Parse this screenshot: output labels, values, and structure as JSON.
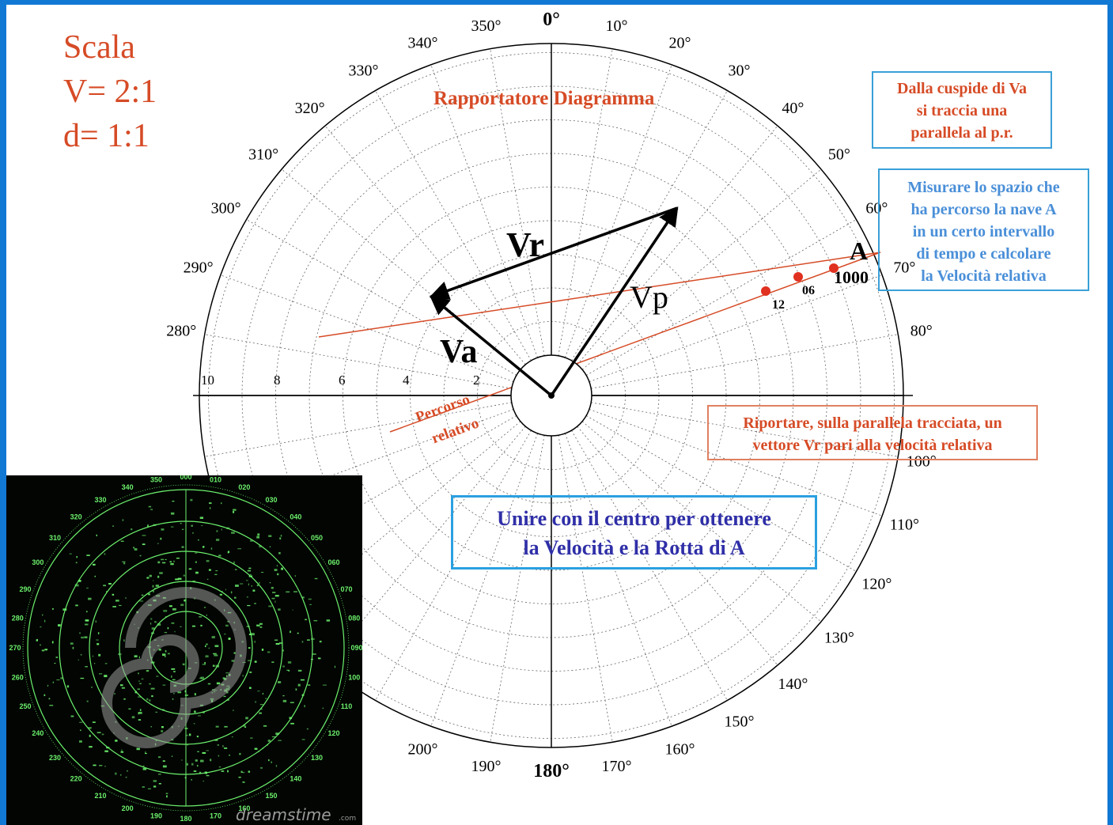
{
  "scale": {
    "title": "Scala",
    "v": "V= 2:1",
    "d": "d= 1:1"
  },
  "diagram_title": "Rapportatore Diagramma",
  "bearings": [
    {
      "deg": 0,
      "label": "0°"
    },
    {
      "deg": 10,
      "label": "10°"
    },
    {
      "deg": 20,
      "label": "20°"
    },
    {
      "deg": 30,
      "label": "30°"
    },
    {
      "deg": 40,
      "label": "40°"
    },
    {
      "deg": 50,
      "label": "50°"
    },
    {
      "deg": 60,
      "label": "60°"
    },
    {
      "deg": 70,
      "label": "70°"
    },
    {
      "deg": 80,
      "label": "80°"
    },
    {
      "deg": 100,
      "label": "100°"
    },
    {
      "deg": 110,
      "label": "110°"
    },
    {
      "deg": 120,
      "label": "120°"
    },
    {
      "deg": 130,
      "label": "130°"
    },
    {
      "deg": 140,
      "label": "140°"
    },
    {
      "deg": 150,
      "label": "150°"
    },
    {
      "deg": 160,
      "label": "160°"
    },
    {
      "deg": 170,
      "label": "170°"
    },
    {
      "deg": 180,
      "label": "180°"
    },
    {
      "deg": 190,
      "label": "190°"
    },
    {
      "deg": 200,
      "label": "200°"
    },
    {
      "deg": 280,
      "label": "280°"
    },
    {
      "deg": 290,
      "label": "290°"
    },
    {
      "deg": 300,
      "label": "300°"
    },
    {
      "deg": 310,
      "label": "310°"
    },
    {
      "deg": 320,
      "label": "320°"
    },
    {
      "deg": 330,
      "label": "330°"
    },
    {
      "deg": 340,
      "label": "340°"
    },
    {
      "deg": 350,
      "label": "350°"
    }
  ],
  "range_labels": [
    "10",
    "8",
    "6",
    "4",
    "2"
  ],
  "vectors": {
    "vr": "Vr",
    "vp": "Vp",
    "va": "Va"
  },
  "relative_course": {
    "line1": "Percorso",
    "line2": "relativo"
  },
  "target": {
    "name": "A",
    "t1000": "1000",
    "t06": "06",
    "t12": "12"
  },
  "notes": {
    "n1": [
      "Dalla cuspide di Va",
      "si traccia una",
      "parallela al p.r."
    ],
    "n2": [
      "Misurare lo spazio che",
      "ha percorso la nave A",
      "in un certo intervallo",
      "di tempo e calcolare",
      "la Velocità relativa"
    ],
    "n3": [
      "Riportare, sulla parallela tracciata, un",
      "vettore Vr pari alla velocità relativa"
    ],
    "n4": [
      "Unire con il centro per ottenere",
      "la Velocità e la Rotta di A"
    ]
  },
  "radar": {
    "labels": [
      "000",
      "010",
      "020",
      "030",
      "040",
      "050",
      "060",
      "070",
      "080",
      "090",
      "100",
      "110",
      "120",
      "130",
      "140",
      "150",
      "160",
      "170",
      "180",
      "190",
      "200",
      "210",
      "220",
      "230",
      "240",
      "250",
      "260",
      "270",
      "280",
      "290",
      "300",
      "310",
      "320",
      "330",
      "340",
      "350"
    ],
    "watermark": "dreamstime",
    "watermark_suffix": ".com"
  },
  "colors": {
    "frame": "#1178d4",
    "orange": "#d64b26",
    "blue": "#2f2fa8",
    "note_border": "#3aa0d8",
    "radar_green": "#6cf06c"
  }
}
